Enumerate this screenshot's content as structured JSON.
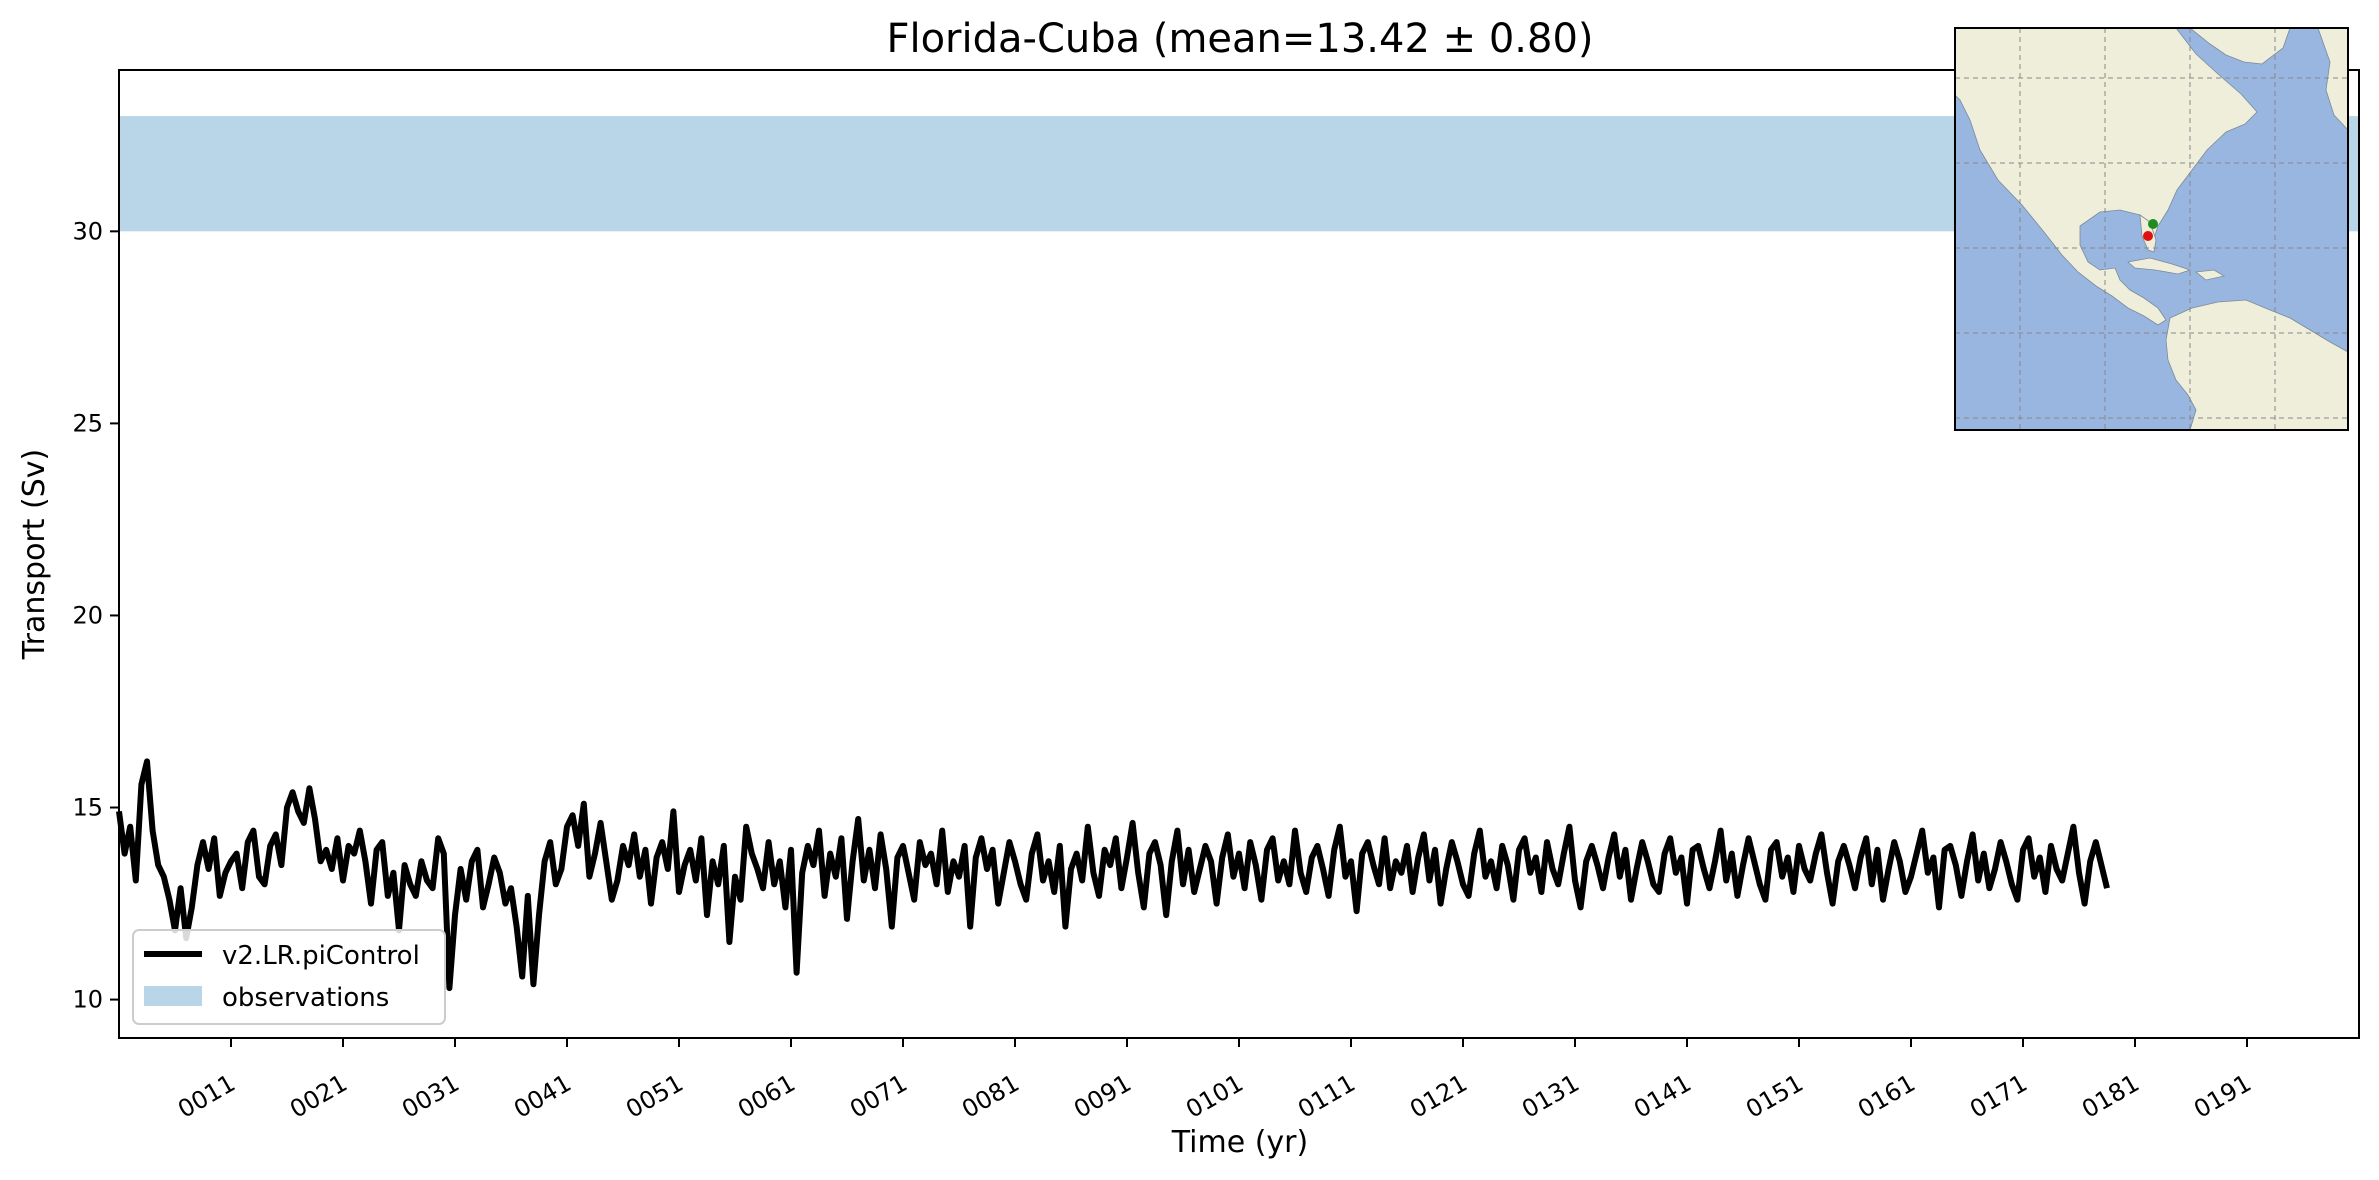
{
  "chart_data": {
    "type": "line",
    "title": "Florida-Cuba (mean=13.42 ± 0.80)",
    "xlabel": "Time (yr)",
    "ylabel": "Transport (Sv)",
    "xlim": [
      1,
      201
    ],
    "ylim": [
      9.0,
      34.2
    ],
    "x_ticks": [
      11,
      21,
      31,
      41,
      51,
      61,
      71,
      81,
      91,
      101,
      111,
      121,
      131,
      141,
      151,
      161,
      171,
      181,
      191
    ],
    "x_tick_labels": [
      "0011",
      "0021",
      "0031",
      "0041",
      "0051",
      "0061",
      "0071",
      "0081",
      "0091",
      "0101",
      "0111",
      "0121",
      "0131",
      "0141",
      "0151",
      "0161",
      "0171",
      "0181",
      "0191"
    ],
    "y_ticks": [
      10,
      15,
      20,
      25,
      30
    ],
    "y_tick_labels": [
      "10",
      "15",
      "20",
      "25",
      "30"
    ],
    "legend": {
      "placement": "lower-left"
    },
    "series": [
      {
        "name": "v2.LR.piControl",
        "color": "#000000",
        "kind": "line",
        "x_start": 1,
        "x_step": 0.5,
        "values": [
          14.9,
          13.8,
          14.5,
          13.1,
          15.6,
          16.2,
          14.4,
          13.5,
          13.2,
          12.6,
          11.8,
          12.9,
          11.6,
          12.4,
          13.5,
          14.1,
          13.4,
          14.2,
          12.7,
          13.3,
          13.6,
          13.8,
          12.9,
          14.1,
          14.4,
          13.2,
          13.0,
          14.0,
          14.3,
          13.5,
          15.0,
          15.4,
          14.9,
          14.6,
          15.5,
          14.7,
          13.6,
          13.9,
          13.4,
          14.2,
          13.1,
          14.0,
          13.8,
          14.4,
          13.6,
          12.5,
          13.9,
          14.1,
          12.7,
          13.3,
          11.8,
          13.5,
          13.0,
          12.7,
          13.6,
          13.1,
          12.9,
          14.2,
          13.8,
          10.3,
          12.2,
          13.4,
          12.6,
          13.6,
          13.9,
          12.4,
          13.0,
          13.7,
          13.3,
          12.5,
          12.9,
          11.9,
          10.6,
          12.7,
          10.4,
          12.2,
          13.6,
          14.1,
          13.0,
          13.4,
          14.5,
          14.8,
          14.0,
          15.1,
          13.2,
          13.8,
          14.6,
          13.6,
          12.6,
          13.1,
          14.0,
          13.5,
          14.3,
          13.2,
          13.9,
          12.5,
          13.7,
          14.1,
          13.4,
          14.9,
          12.8,
          13.5,
          13.9,
          13.1,
          14.2,
          12.2,
          13.6,
          13.0,
          14.0,
          11.5,
          13.2,
          12.6,
          14.5,
          13.8,
          13.4,
          12.9,
          14.1,
          13.0,
          13.6,
          12.4,
          13.9,
          10.7,
          13.3,
          14.0,
          13.5,
          14.4,
          12.7,
          13.8,
          13.2,
          14.2,
          12.1,
          13.6,
          14.7,
          13.1,
          13.9,
          12.9,
          14.3,
          13.4,
          11.9,
          13.7,
          14.0,
          13.3,
          12.6,
          14.1,
          13.5,
          13.8,
          13.0,
          14.4,
          12.8,
          13.6,
          13.2,
          14.0,
          11.9,
          13.7,
          14.2,
          13.4,
          13.9,
          12.5,
          13.3,
          14.1,
          13.6,
          13.0,
          12.6,
          13.8,
          14.3,
          13.1,
          13.6,
          12.8,
          14.0,
          11.9,
          13.4,
          13.8,
          13.1,
          14.5,
          13.3,
          12.7,
          13.9,
          13.5,
          14.2,
          12.9,
          13.7,
          14.6,
          13.3,
          12.4,
          13.8,
          14.1,
          13.5,
          12.2,
          13.6,
          14.4,
          13.0,
          13.9,
          12.8,
          13.4,
          14.0,
          13.6,
          12.5,
          13.7,
          14.3,
          13.2,
          13.8,
          12.9,
          14.1,
          13.5,
          12.6,
          13.9,
          14.2,
          13.1,
          13.6,
          13.0,
          14.4,
          13.3,
          12.8,
          13.7,
          14.0,
          13.4,
          12.7,
          13.9,
          14.5,
          13.2,
          13.6,
          12.3,
          13.8,
          14.1,
          13.5,
          13.0,
          14.2,
          12.9,
          13.6,
          13.3,
          14.0,
          12.8,
          13.7,
          14.3,
          13.1,
          13.9,
          12.5,
          13.4,
          14.1,
          13.6,
          13.0,
          12.7,
          13.8,
          14.4,
          13.2,
          13.6,
          12.9,
          14.0,
          13.5,
          12.6,
          13.9,
          14.2,
          13.3,
          13.7,
          12.8,
          14.1,
          13.4,
          13.0,
          13.8,
          14.5,
          13.1,
          12.4,
          13.6,
          14.0,
          13.5,
          12.9,
          13.7,
          14.3,
          13.2,
          13.9,
          12.6,
          13.4,
          14.1,
          13.6,
          13.0,
          12.8,
          13.8,
          14.2,
          13.3,
          13.7,
          12.5,
          13.9,
          14.0,
          13.4,
          12.9,
          13.6,
          14.4,
          13.1,
          13.8,
          12.7,
          13.5,
          14.2,
          13.6,
          13.0,
          12.6,
          13.9,
          14.1,
          13.2,
          13.7,
          12.8,
          14.0,
          13.4,
          13.1,
          13.8,
          14.3,
          13.3,
          12.5,
          13.6,
          14.0,
          13.5,
          12.9,
          13.7,
          14.2,
          13.0,
          13.9,
          12.6,
          13.4,
          14.1,
          13.6,
          12.8,
          13.2,
          13.8,
          14.4,
          13.3,
          13.7,
          12.4,
          13.9,
          14.0,
          13.5,
          12.7,
          13.6,
          14.3,
          13.1,
          13.8,
          12.9,
          13.4,
          14.1,
          13.6,
          13.0,
          12.6,
          13.9,
          14.2,
          13.2,
          13.7,
          12.8,
          14.0,
          13.4,
          13.1,
          13.8,
          14.5,
          13.3,
          12.5,
          13.6,
          14.1,
          13.5,
          12.9
        ],
        "stroke_px": 6
      }
    ],
    "bands": [
      {
        "name": "observations",
        "color": "#b9d5e8",
        "y_from": 30.0,
        "y_to": 33.0
      }
    ],
    "inset_map": {
      "region": "North and South America, Atlantic",
      "land_color": "#efeedb",
      "ocean_color": "#99b6e0",
      "grid": true,
      "markers": [
        {
          "label": "green",
          "color": "#1e8c1e"
        },
        {
          "label": "red",
          "color": "#e01010"
        }
      ]
    }
  }
}
